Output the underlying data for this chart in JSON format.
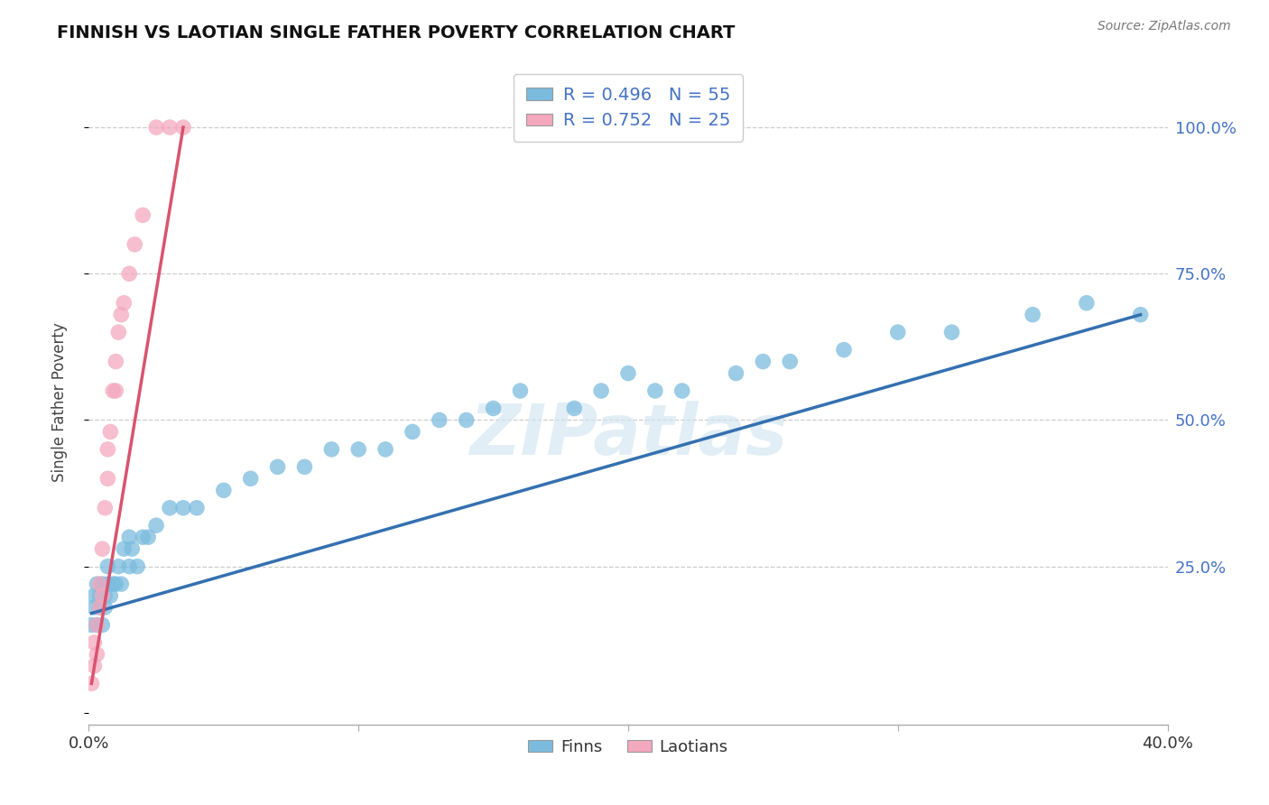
{
  "title": "FINNISH VS LAOTIAN SINGLE FATHER POVERTY CORRELATION CHART",
  "source": "Source: ZipAtlas.com",
  "ylabel": "Single Father Poverty",
  "xlim": [
    0.0,
    0.4
  ],
  "ylim": [
    -0.02,
    1.08
  ],
  "blue_color": "#7bbcde",
  "pink_color": "#f4a8be",
  "blue_line_color": "#3470b0",
  "pink_line_color": "#d9536e",
  "legend_blue_text": "R = 0.496   N = 55",
  "legend_pink_text": "R = 0.752   N = 25",
  "legend_label_finns": "Finns",
  "legend_label_laotians": "Laotians",
  "watermark": "ZIPatlas",
  "finns_x": [
    0.001,
    0.002,
    0.002,
    0.003,
    0.003,
    0.004,
    0.004,
    0.005,
    0.005,
    0.006,
    0.006,
    0.007,
    0.007,
    0.008,
    0.009,
    0.01,
    0.011,
    0.012,
    0.013,
    0.015,
    0.015,
    0.016,
    0.018,
    0.02,
    0.022,
    0.025,
    0.03,
    0.035,
    0.04,
    0.05,
    0.06,
    0.07,
    0.08,
    0.09,
    0.1,
    0.11,
    0.12,
    0.13,
    0.14,
    0.15,
    0.16,
    0.18,
    0.19,
    0.2,
    0.21,
    0.22,
    0.24,
    0.25,
    0.26,
    0.28,
    0.3,
    0.32,
    0.35,
    0.37,
    0.39
  ],
  "finns_y": [
    0.15,
    0.18,
    0.2,
    0.15,
    0.22,
    0.18,
    0.2,
    0.15,
    0.22,
    0.18,
    0.2,
    0.22,
    0.25,
    0.2,
    0.22,
    0.22,
    0.25,
    0.22,
    0.28,
    0.25,
    0.3,
    0.28,
    0.25,
    0.3,
    0.3,
    0.32,
    0.35,
    0.35,
    0.35,
    0.38,
    0.4,
    0.42,
    0.42,
    0.45,
    0.45,
    0.45,
    0.48,
    0.5,
    0.5,
    0.52,
    0.55,
    0.52,
    0.55,
    0.58,
    0.55,
    0.55,
    0.58,
    0.6,
    0.6,
    0.62,
    0.65,
    0.65,
    0.68,
    0.7,
    0.68
  ],
  "laotians_x": [
    0.001,
    0.002,
    0.002,
    0.003,
    0.003,
    0.004,
    0.004,
    0.005,
    0.005,
    0.006,
    0.007,
    0.007,
    0.008,
    0.009,
    0.01,
    0.01,
    0.011,
    0.012,
    0.013,
    0.015,
    0.017,
    0.02,
    0.025,
    0.03,
    0.035
  ],
  "laotians_y": [
    0.05,
    0.08,
    0.12,
    0.1,
    0.15,
    0.18,
    0.22,
    0.2,
    0.28,
    0.35,
    0.4,
    0.45,
    0.48,
    0.55,
    0.55,
    0.6,
    0.65,
    0.68,
    0.7,
    0.75,
    0.8,
    0.85,
    1.0,
    1.0,
    1.0
  ],
  "blue_line_x": [
    0.001,
    0.39
  ],
  "blue_line_y": [
    0.17,
    0.68
  ],
  "pink_line_x": [
    0.001,
    0.035
  ],
  "pink_line_y": [
    0.05,
    1.0
  ]
}
